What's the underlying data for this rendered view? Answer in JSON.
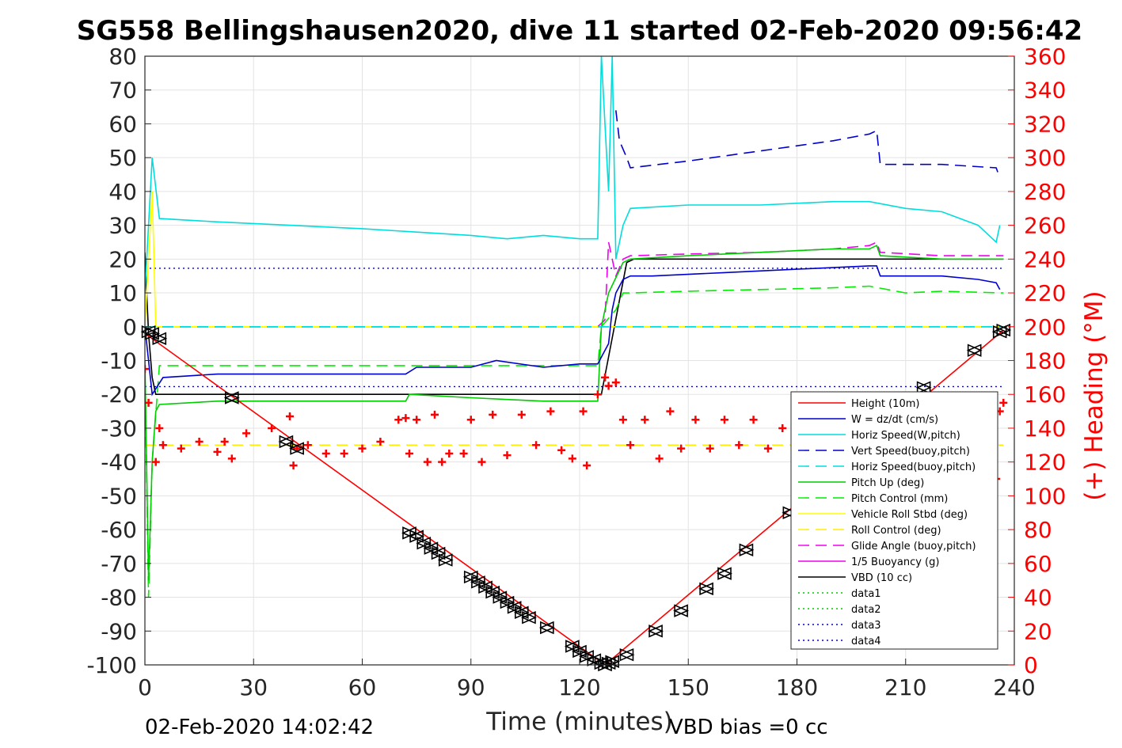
{
  "chart_data": {
    "type": "line",
    "title": "SG558 Bellingshausen2020, dive 11 started 02-Feb-2020 09:56:42",
    "xlabel": "Time (minutes)",
    "ylabel": "",
    "y2label": "(+) Heading (°M)",
    "xlim": [
      0,
      240
    ],
    "ylim": [
      -100,
      80
    ],
    "y2lim": [
      0,
      360
    ],
    "xticks": [
      0,
      30,
      60,
      90,
      120,
      150,
      180,
      210,
      240
    ],
    "yticks": [
      80,
      70,
      60,
      50,
      40,
      30,
      20,
      10,
      0,
      -10,
      -20,
      -30,
      -40,
      -50,
      -60,
      -70,
      -80,
      -90,
      -100
    ],
    "y2ticks": [
      360,
      340,
      320,
      300,
      280,
      260,
      240,
      220,
      200,
      180,
      160,
      140,
      120,
      100,
      80,
      60,
      40,
      20,
      0
    ],
    "grid": true,
    "legend_position": "bottom-right",
    "annotations": {
      "end_time": "02-Feb-2020 14:02:42",
      "vbd_bias": "VBD bias =0 cc"
    },
    "series": [
      {
        "name": "Height (10m)",
        "color": "#ff0000",
        "style": "solid",
        "x": [
          0,
          127,
          237
        ],
        "y": [
          -2,
          -100,
          -1
        ]
      },
      {
        "name": "W = dz/dt (cm/s)",
        "color": "#0000cc",
        "style": "solid",
        "x": [
          0,
          2,
          5,
          20,
          40,
          60,
          72,
          75,
          90,
          97,
          110,
          120,
          125,
          128,
          129,
          130,
          132,
          134,
          140,
          160,
          180,
          200,
          202,
          203,
          220,
          230,
          235,
          236
        ],
        "y": [
          0,
          -20,
          -15,
          -14,
          -14,
          -14,
          -14,
          -12,
          -12,
          -10,
          -12,
          -11,
          -11,
          -5,
          5,
          10,
          14,
          15,
          15,
          16,
          17,
          18,
          18,
          15,
          15,
          14,
          13,
          11
        ]
      },
      {
        "name": "Horiz Speed(W,pitch)",
        "color": "#00dddd",
        "style": "solid",
        "x": [
          0,
          2,
          4,
          20,
          40,
          60,
          75,
          90,
          100,
          110,
          120,
          125,
          126,
          127,
          128,
          129,
          130,
          132,
          134,
          150,
          170,
          190,
          200,
          210,
          220,
          230,
          235,
          236
        ],
        "y": [
          10,
          50,
          32,
          31,
          30,
          29,
          28,
          27,
          26,
          27,
          26,
          26,
          80,
          60,
          40,
          80,
          20,
          30,
          35,
          36,
          36,
          37,
          37,
          35,
          34,
          30,
          25,
          30
        ]
      },
      {
        "name": "Vert Speed(buoy,pitch)",
        "color": "#0000cc",
        "style": "dashed",
        "x": [
          130,
          131,
          133,
          134,
          150,
          170,
          190,
          200,
          202,
          203,
          220,
          235,
          236
        ],
        "y": [
          64,
          55,
          50,
          47,
          49,
          52,
          55,
          57,
          58,
          48,
          48,
          47,
          44
        ]
      },
      {
        "name": "Horiz Speed(buoy,pitch)",
        "color": "#00dddd",
        "style": "dashed",
        "x": [
          0,
          237
        ],
        "y": [
          0,
          0
        ]
      },
      {
        "name": "Pitch Up (deg)",
        "color": "#00cc00",
        "style": "solid",
        "x": [
          0,
          1,
          2,
          3,
          4,
          20,
          40,
          60,
          72,
          73,
          90,
          110,
          120,
          125,
          126,
          128,
          132,
          134,
          150,
          170,
          190,
          200,
          202,
          203,
          220,
          237
        ],
        "y": [
          -10,
          -75,
          -40,
          -25,
          -23,
          -22,
          -22,
          -22,
          -22,
          -20,
          -21,
          -22,
          -22,
          -22,
          0,
          10,
          19,
          20,
          21,
          22,
          23,
          23,
          24,
          21,
          20,
          20
        ]
      },
      {
        "name": "Pitch Control (mm)",
        "color": "#00ee00",
        "style": "dashed",
        "x": [
          0,
          1,
          2,
          4,
          40,
          120,
          125,
          126,
          130,
          132,
          134,
          150,
          170,
          190,
          200,
          210,
          220,
          237
        ],
        "y": [
          -12,
          -80,
          -40,
          -11.5,
          -11.5,
          -11.5,
          -11.5,
          0,
          5,
          10,
          10,
          10.5,
          11,
          11.5,
          12,
          10,
          10.5,
          10
        ]
      },
      {
        "name": "Vehicle Roll Stbd (deg)",
        "color": "#ffff00",
        "style": "solid",
        "x": [
          0,
          2,
          3,
          40,
          75,
          120,
          127,
          237
        ],
        "y": [
          0,
          40,
          0,
          0,
          0,
          0,
          0,
          0
        ]
      },
      {
        "name": "Roll Control (deg)",
        "color": "#ffee00",
        "style": "dashed",
        "x": [
          0,
          237
        ],
        "y": [
          -35,
          -35
        ]
      },
      {
        "name": "Glide Angle (buoy,pitch)",
        "color": "#ee00ee",
        "style": "dashed",
        "x": [
          0,
          125,
          127,
          128,
          130,
          132,
          134,
          150,
          170,
          190,
          200,
          202,
          203,
          220,
          237
        ],
        "y": [
          0,
          0,
          2,
          25,
          15,
          20,
          21,
          21.5,
          22,
          23,
          24,
          25,
          22,
          21,
          21
        ]
      },
      {
        "name": "1/5 Buoyancy (g)",
        "color": "#ee00ee",
        "style": "solid",
        "x": [
          0,
          237
        ],
        "y": [
          0,
          0
        ]
      },
      {
        "name": "VBD (10 cc)",
        "color": "#000000",
        "style": "solid",
        "x": [
          0,
          1,
          2,
          3,
          5,
          125,
          126,
          133,
          135,
          237
        ],
        "y": [
          22,
          -2,
          -15,
          -20,
          -20,
          -20,
          -20,
          19,
          20,
          20
        ]
      },
      {
        "name": "data1",
        "color": "#00cc00",
        "style": "dotted",
        "x": [],
        "y": []
      },
      {
        "name": "data2",
        "color": "#00cc00",
        "style": "dotted",
        "x": [],
        "y": []
      },
      {
        "name": "data3",
        "color": "#0000cc",
        "style": "dotted",
        "x": [
          0,
          237
        ],
        "y": [
          17.3,
          17.3
        ]
      },
      {
        "name": "data4",
        "color": "#0000cc",
        "style": "dotted",
        "x": [
          0,
          237
        ],
        "y": [
          -17.7,
          -17.7
        ]
      }
    ],
    "heading_series": {
      "name": "Heading",
      "color": "#ff0000",
      "axis": "right",
      "marker": "+",
      "x": [
        0,
        1,
        3,
        4,
        5,
        10,
        15,
        20,
        22,
        24,
        28,
        35,
        40,
        41,
        42,
        45,
        50,
        55,
        60,
        65,
        70,
        72,
        73,
        75,
        78,
        80,
        82,
        84,
        88,
        90,
        93,
        96,
        100,
        104,
        108,
        112,
        115,
        118,
        121,
        122,
        125,
        127,
        128,
        130,
        132,
        134,
        138,
        142,
        145,
        148,
        152,
        156,
        160,
        164,
        168,
        172,
        176,
        180,
        184,
        188,
        192,
        196,
        200,
        204,
        208,
        212,
        216,
        220,
        224,
        228,
        232,
        234,
        235,
        236,
        237
      ],
      "y": [
        175,
        155,
        120,
        140,
        130,
        128,
        132,
        126,
        132,
        122,
        137,
        140,
        147,
        118,
        128,
        130,
        125,
        125,
        128,
        132,
        145,
        146,
        125,
        145,
        120,
        148,
        120,
        125,
        125,
        145,
        120,
        148,
        124,
        148,
        130,
        150,
        127,
        122,
        150,
        118,
        160,
        170,
        165,
        167,
        145,
        130,
        145,
        122,
        150,
        128,
        145,
        128,
        145,
        130,
        145,
        128,
        140,
        148,
        138,
        130,
        142,
        135,
        145,
        148,
        130,
        145,
        150,
        140,
        142,
        130,
        120,
        100,
        110,
        150,
        155
      ]
    },
    "marker_series": {
      "name": "",
      "color": "#000000",
      "marker": "triangles",
      "x": [
        1,
        2,
        4,
        24,
        39,
        42,
        73,
        75,
        77,
        79,
        81,
        83,
        90,
        92,
        94,
        96,
        98,
        100,
        102,
        104,
        106,
        111,
        118,
        120,
        122,
        124,
        126,
        127,
        128,
        129,
        133,
        141,
        148,
        155,
        160,
        166,
        178,
        215,
        229,
        236,
        237
      ],
      "y": [
        -1.5,
        -2,
        -3.5,
        -21,
        -34,
        -36,
        -61,
        -62,
        -64,
        -65.5,
        -67,
        -69,
        -74,
        -75.5,
        -77,
        -78.5,
        -80,
        -81.5,
        -83,
        -84.5,
        -86,
        -89,
        -94.5,
        -96,
        -97.5,
        -98.5,
        -99.5,
        -100,
        -99.5,
        -99,
        -97,
        -90,
        -84,
        -77.5,
        -73,
        -66,
        -55,
        -18,
        -7,
        -1.5,
        -1
      ]
    }
  }
}
